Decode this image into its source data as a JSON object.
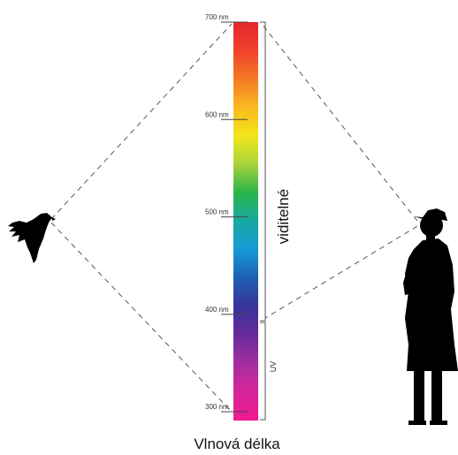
{
  "diagram": {
    "axis_caption": "Vlnová délka",
    "ticks": [
      {
        "value": 700,
        "label": "700 nm"
      },
      {
        "value": 600,
        "label": "600 nm"
      },
      {
        "value": 500,
        "label": "500 nm"
      },
      {
        "value": 400,
        "label": "400 nm"
      },
      {
        "value": 300,
        "label": "300 nm"
      }
    ],
    "ranges": {
      "visible": {
        "label": "viditelné",
        "from": 400,
        "to": 700
      },
      "uv": {
        "label": "UV",
        "from": 300,
        "to": 400
      }
    },
    "figures": {
      "bird": "bird-silhouette",
      "human": "woman-silhouette"
    },
    "colors": {
      "spectrum": [
        "#e3262d",
        "#f0412b",
        "#f57a25",
        "#f9b91f",
        "#f2e61c",
        "#a8d33a",
        "#27b34a",
        "#16a9a0",
        "#169ad8",
        "#1e5eb0",
        "#38349a",
        "#6a2a9c",
        "#a42ea0",
        "#d8259a",
        "#f01891"
      ],
      "sight_lines": "#555555",
      "silhouette": "#000000"
    }
  }
}
